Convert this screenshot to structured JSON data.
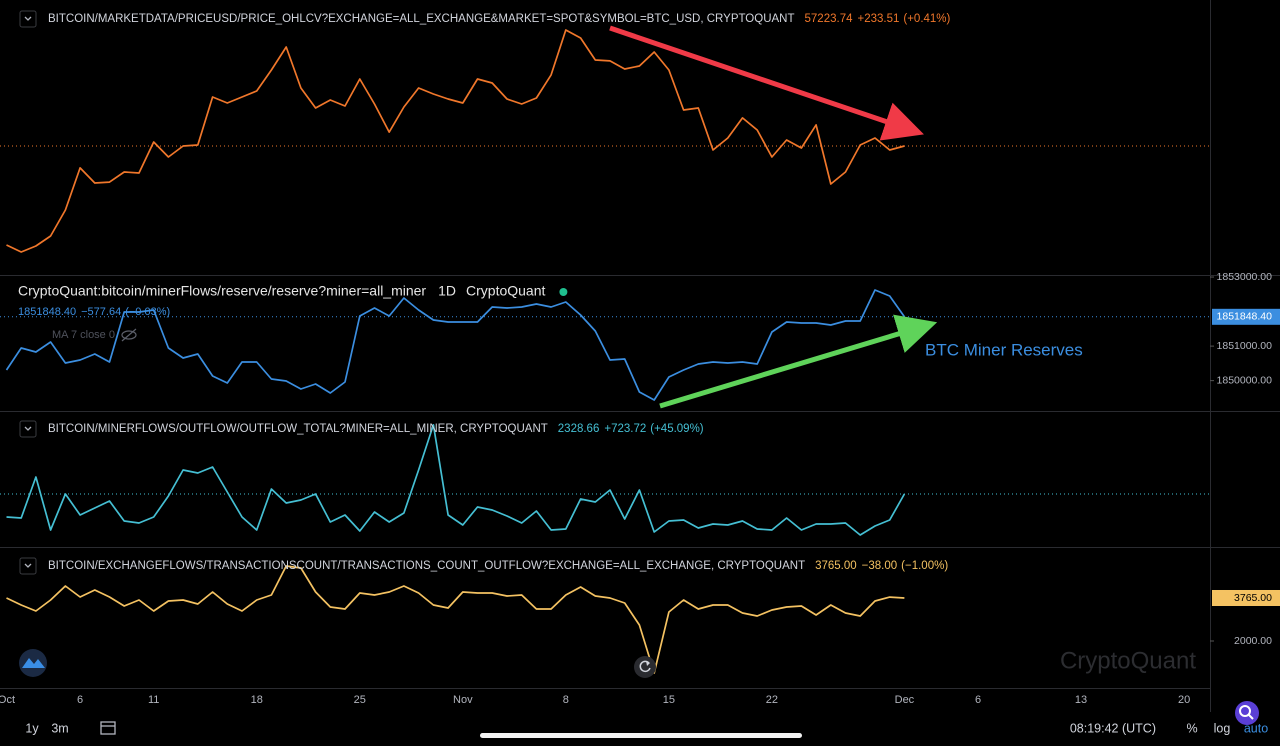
{
  "chart_data": [
    {
      "type": "line",
      "series": [
        {
          "name": "BITCOIN/MARKETDATA/PRICEUSD/PRICE_OHLCV?EXCHANGE=ALL_EXCHANGE&MARKET=SPOT&SYMBOL=BTC_USD, CRYPTOQUANT",
          "color": "#f0772b",
          "values": [
            48450,
            47830,
            48360,
            49250,
            51550,
            55280,
            53950,
            54030,
            54920,
            54830,
            57580,
            56250,
            57220,
            57310,
            61570,
            61030,
            61570,
            62100,
            63960,
            66000,
            62360,
            60590,
            61300,
            60770,
            63160,
            60950,
            58460,
            60680,
            62360,
            61830,
            61390,
            61030,
            63160,
            62810,
            61390,
            60950,
            61480,
            63520,
            67500,
            66790,
            64840,
            64760,
            64050,
            64310,
            65550,
            63960,
            60410,
            60590,
            56870,
            57930,
            59710,
            58640,
            56250,
            57760,
            57050,
            59090,
            53860,
            54920,
            57310,
            57930,
            56870,
            57223.74
          ]
        }
      ],
      "x": [
        0,
        1,
        2,
        3,
        4,
        5,
        6,
        7,
        8,
        9,
        10,
        11,
        12,
        13,
        14,
        15,
        16,
        17,
        18,
        19,
        20,
        21,
        22,
        23,
        24,
        25,
        26,
        27,
        28,
        29,
        30,
        31,
        32,
        33,
        34,
        35,
        36,
        37,
        38,
        39,
        40,
        41,
        42,
        43,
        44,
        45,
        46,
        47,
        48,
        49,
        50,
        51,
        52,
        53,
        54,
        55,
        56,
        57,
        58,
        59,
        60,
        61
      ],
      "xlim": [
        -0.44,
        81.76
      ],
      "ylim": [
        45795,
        70160
      ],
      "grid": false,
      "last_label": "57223.74",
      "change": "+233.51",
      "change_pct": "(+0.41%)",
      "last_line": true,
      "last_box": false
    },
    {
      "type": "line",
      "series": [
        {
          "name": "CryptoQuant:bitcoin/minerFlows/reserve/reserve?miner=all_miner",
          "color": "#3b8ee0",
          "values": [
            1850308,
            1850945,
            1850829,
            1851119,
            1850510,
            1850597,
            1850771,
            1850539,
            1851987,
            1851987,
            1852045,
            1850945,
            1850655,
            1850771,
            1850134,
            1849931,
            1850539,
            1850539,
            1850047,
            1849989,
            1849758,
            1849902,
            1849642,
            1849960,
            1851872,
            1852103,
            1851872,
            1852393,
            1852045,
            1851756,
            1851698,
            1851698,
            1851698,
            1852132,
            1852103,
            1852132,
            1852219,
            1852132,
            1852277,
            1851901,
            1851437,
            1850597,
            1850626,
            1849671,
            1849439,
            1850105,
            1850308,
            1850482,
            1850539,
            1850510,
            1850539,
            1850482,
            1851408,
            1851698,
            1851669,
            1851669,
            1851611,
            1851727,
            1851727,
            1852625,
            1852451,
            1851848.4
          ]
        }
      ],
      "x": [
        0,
        1,
        2,
        3,
        4,
        5,
        6,
        7,
        8,
        9,
        10,
        11,
        12,
        13,
        14,
        15,
        16,
        17,
        18,
        19,
        20,
        21,
        22,
        23,
        24,
        25,
        26,
        27,
        28,
        29,
        30,
        31,
        32,
        33,
        34,
        35,
        36,
        37,
        38,
        39,
        40,
        41,
        42,
        43,
        44,
        45,
        46,
        47,
        48,
        49,
        50,
        51,
        52,
        53,
        54,
        55,
        56,
        57,
        58,
        59,
        60,
        61
      ],
      "xlim": [
        -0.44,
        81.76
      ],
      "ylim": [
        1849150,
        1853030
      ],
      "grid": false,
      "yticks": [
        {
          "value": 1853000,
          "label": "1853000.00"
        },
        {
          "value": 1851000,
          "label": "1851000.00"
        },
        {
          "value": 1850000,
          "label": "1850000.00"
        }
      ],
      "interval": "1D",
      "source": "CryptoQuant",
      "indicator": "MA 7 close 0",
      "last_label": "1851848.40",
      "change": "−577.64",
      "change_pct": "(−0.03%)",
      "last_line": true,
      "last_box": true,
      "last_box_text": "#ffffff",
      "annotations": [
        {
          "text": "BTC Miner Reserves"
        }
      ]
    },
    {
      "type": "line",
      "series": [
        {
          "name": "BITCOIN/MINERFLOWS/OUTFLOW/OUTFLOW_TOTAL?MINER=ALL_MINER, CRYPTOQUANT",
          "color": "#45bfd3",
          "values": [
            1689,
            1661,
            2802,
            1327,
            2329,
            1744,
            1939,
            2134,
            1577,
            1522,
            1689,
            2273,
            2997,
            2913,
            3080,
            2384,
            1689,
            1327,
            2468,
            2078,
            2162,
            2329,
            1549,
            1744,
            1299,
            1828,
            1549,
            1800,
            2997,
            4249,
            1744,
            1466,
            1967,
            1883,
            1716,
            1522,
            1856,
            1327,
            1355,
            2189,
            2106,
            2440,
            1633,
            2440,
            1271,
            1577,
            1605,
            1382,
            1494,
            1466,
            1577,
            1355,
            1327,
            1661,
            1327,
            1494,
            1494,
            1522,
            1188,
            1438,
            1604.94,
            2328.66
          ]
        }
      ],
      "x": [
        0,
        1,
        2,
        3,
        4,
        5,
        6,
        7,
        8,
        9,
        10,
        11,
        12,
        13,
        14,
        15,
        16,
        17,
        18,
        19,
        20,
        21,
        22,
        23,
        24,
        25,
        26,
        27,
        28,
        29,
        30,
        31,
        32,
        33,
        34,
        35,
        36,
        37,
        38,
        39,
        40,
        41,
        42,
        43,
        44,
        45,
        46,
        47,
        48,
        49,
        50,
        51,
        52,
        53,
        54,
        55,
        56,
        57,
        58,
        59,
        60,
        61
      ],
      "xlim": [
        -0.44,
        81.76
      ],
      "ylim": [
        883,
        4608
      ],
      "grid": false,
      "last_label": "2328.66",
      "change": "+723.72",
      "change_pct": "(+45.09%)",
      "last_line": true,
      "last_box": false
    },
    {
      "type": "line",
      "series": [
        {
          "name": "BITCOIN/EXCHANGEFLOWS/TRANSACTIONSCOUNT/TRANSACTIONS_COUNT_OUTFLOW?EXCHANGE=ALL_EXCHANGE, CRYPTOQUANT",
          "color": "#f4c262",
          "values": [
            3765,
            3478,
            3231,
            3683,
            4258,
            3806,
            4093,
            3806,
            3437,
            3683,
            3231,
            3642,
            3683,
            3519,
            4011,
            3519,
            3231,
            3683,
            3888,
            5079,
            4997,
            4011,
            3396,
            3313,
            3970,
            3888,
            4011,
            4258,
            3970,
            3478,
            3355,
            4011,
            3970,
            3970,
            3847,
            3888,
            3313,
            3313,
            3888,
            4217,
            3847,
            3765,
            3560,
            2657,
            686,
            3190,
            3683,
            3313,
            3478,
            3478,
            3149,
            3026,
            3272,
            3396,
            3437,
            3067,
            3478,
            3149,
            3026,
            3642,
            3803,
            3765
          ]
        }
      ],
      "x": [
        0,
        1,
        2,
        3,
        4,
        5,
        6,
        7,
        8,
        9,
        10,
        11,
        12,
        13,
        14,
        15,
        16,
        17,
        18,
        19,
        20,
        21,
        22,
        23,
        24,
        25,
        26,
        27,
        28,
        29,
        30,
        31,
        32,
        33,
        34,
        35,
        36,
        37,
        38,
        39,
        40,
        41,
        42,
        43,
        44,
        45,
        46,
        47,
        48,
        49,
        50,
        51,
        52,
        53,
        54,
        55,
        56,
        57,
        58,
        59,
        60,
        61
      ],
      "xlim": [
        -0.44,
        81.76
      ],
      "ylim": [
        71,
        5817
      ],
      "grid": false,
      "yticks": [
        {
          "value": 2000,
          "label": "2000.00"
        }
      ],
      "xticks": [
        {
          "value": 0,
          "label": "Oct"
        },
        {
          "value": 5,
          "label": "6"
        },
        {
          "value": 10,
          "label": "11"
        },
        {
          "value": 17,
          "label": "18"
        },
        {
          "value": 24,
          "label": "25"
        },
        {
          "value": 31,
          "label": "Nov"
        },
        {
          "value": 38,
          "label": "8"
        },
        {
          "value": 45,
          "label": "15"
        },
        {
          "value": 52,
          "label": "22"
        },
        {
          "value": 61,
          "label": "Dec"
        },
        {
          "value": 66,
          "label": "6"
        },
        {
          "value": 73,
          "label": "13"
        },
        {
          "value": 80,
          "label": "20"
        }
      ],
      "last_label": "3765.00",
      "change": "−38.00",
      "change_pct": "(−1.00%)",
      "last_line": false,
      "last_box": true,
      "last_box_text": "#000000"
    }
  ],
  "watermark": "CryptoQuant",
  "toolbar": {
    "ranges": [
      "1y",
      "3m"
    ],
    "clock": "08:19:42 (UTC)",
    "options": [
      "%",
      "log",
      "auto"
    ]
  }
}
